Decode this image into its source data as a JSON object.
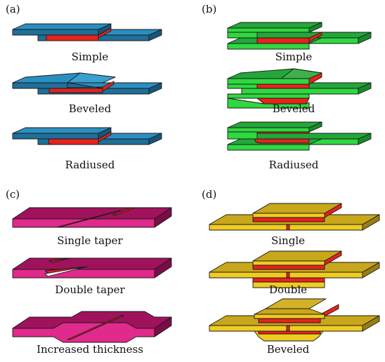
{
  "panels": [
    {
      "label": "(a)",
      "joints": [
        "Simple",
        "Beveled",
        "Radiused"
      ],
      "colors": {
        "top": "#2a8fc0",
        "front": "#1f6f99",
        "side": "#17567a",
        "adhesive": "#e8221c"
      }
    },
    {
      "label": "(b)",
      "joints": [
        "Simple",
        "Beveled",
        "Radiused"
      ],
      "colors": {
        "top": "#22a83a",
        "front": "#2fd83f",
        "side": "#168a2a",
        "adhesive": "#e8221c"
      }
    },
    {
      "label": "(c)",
      "joints": [
        "Single taper",
        "Double taper",
        "Increased thickness"
      ],
      "colors": {
        "top": "#a0125c",
        "front": "#e02a8c",
        "side": "#7a0c46",
        "adhesive": "#e8221c"
      }
    },
    {
      "label": "(d)",
      "joints": [
        "Single",
        "Double",
        "Beveled"
      ],
      "colors": {
        "top": "#c8a71a",
        "front": "#f0cc22",
        "side": "#9a7e10",
        "adhesive": "#e8221c"
      }
    }
  ]
}
